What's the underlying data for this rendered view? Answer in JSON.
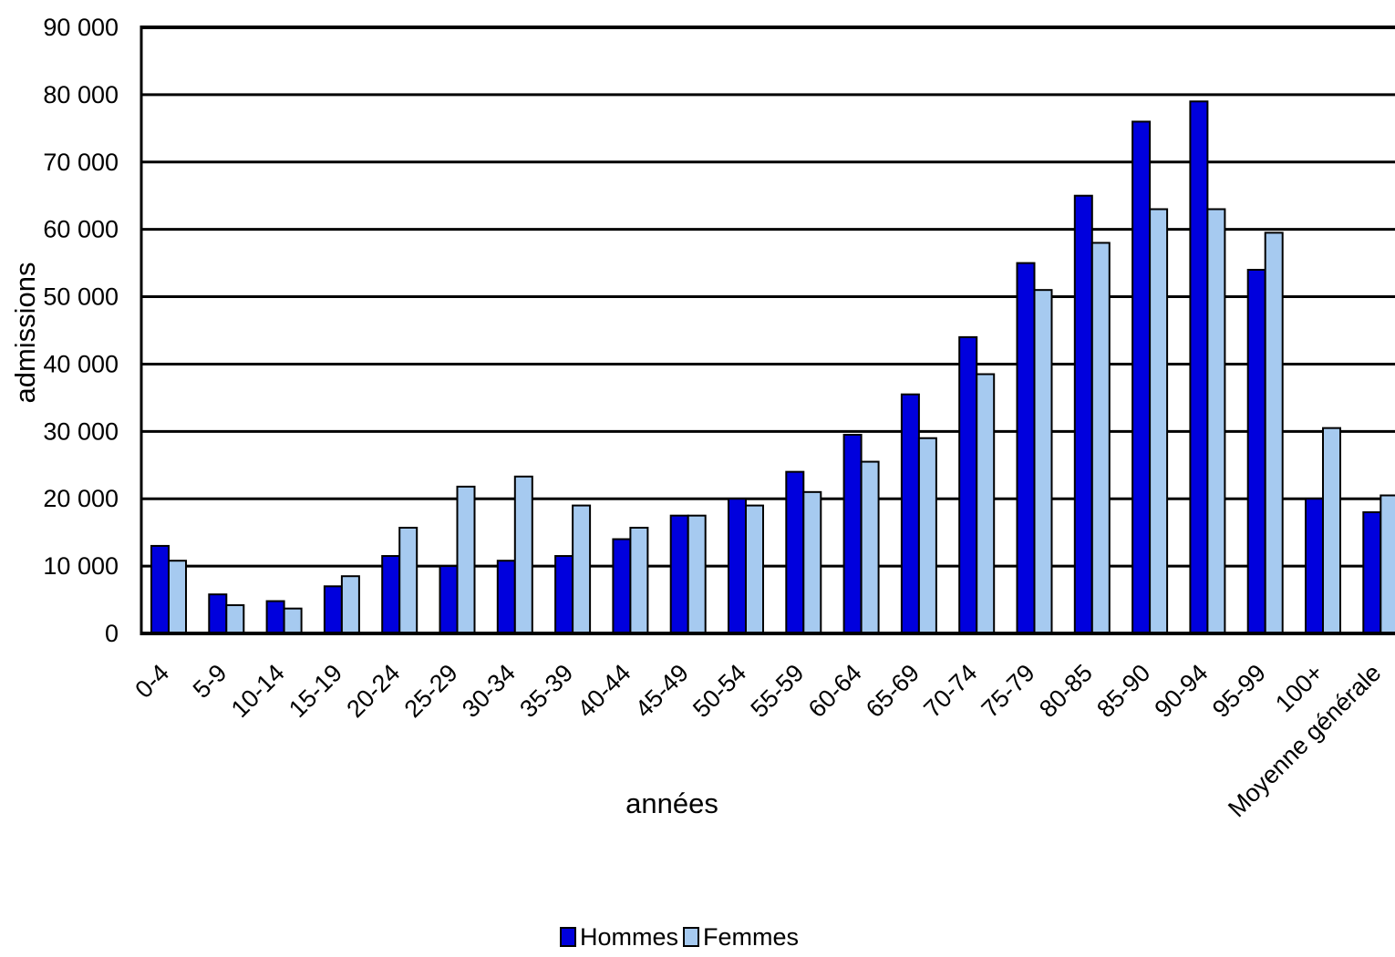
{
  "chart_data": {
    "type": "bar",
    "title": "",
    "xlabel": "années",
    "ylabel": "admissions",
    "ylim": [
      0,
      90000
    ],
    "yticks": [
      {
        "value": 0,
        "label": "0"
      },
      {
        "value": 10000,
        "label": "10 000"
      },
      {
        "value": 20000,
        "label": "20 000"
      },
      {
        "value": 30000,
        "label": "30 000"
      },
      {
        "value": 40000,
        "label": "40 000"
      },
      {
        "value": 50000,
        "label": "50 000"
      },
      {
        "value": 60000,
        "label": "60 000"
      },
      {
        "value": 70000,
        "label": "70 000"
      },
      {
        "value": 80000,
        "label": "80 000"
      },
      {
        "value": 90000,
        "label": "90 000"
      }
    ],
    "grid": true,
    "legend_position": "bottom",
    "categories": [
      "0-4",
      "5-9",
      "10-14",
      "15-19",
      "20-24",
      "25-29",
      "30-34",
      "35-39",
      "40-44",
      "45-49",
      "50-54",
      "55-59",
      "60-64",
      "65-69",
      "70-74",
      "75-79",
      "80-85",
      "85-90",
      "90-94",
      "95-99",
      "100+",
      "Moyenne générale"
    ],
    "series": [
      {
        "name": "Hommes",
        "color": "#0000dd",
        "values": [
          13000,
          5800,
          4800,
          7000,
          11500,
          10000,
          10800,
          11500,
          14000,
          17500,
          20000,
          24000,
          29500,
          35500,
          44000,
          55000,
          65000,
          76000,
          79000,
          54000,
          20000,
          18000
        ]
      },
      {
        "name": "Femmes",
        "color": "#a6caf0",
        "values": [
          10800,
          4200,
          3700,
          8500,
          15700,
          21800,
          23300,
          19000,
          15700,
          17500,
          19000,
          21000,
          25500,
          29000,
          38500,
          51000,
          58000,
          63000,
          63000,
          59500,
          30500,
          20500
        ]
      }
    ]
  }
}
